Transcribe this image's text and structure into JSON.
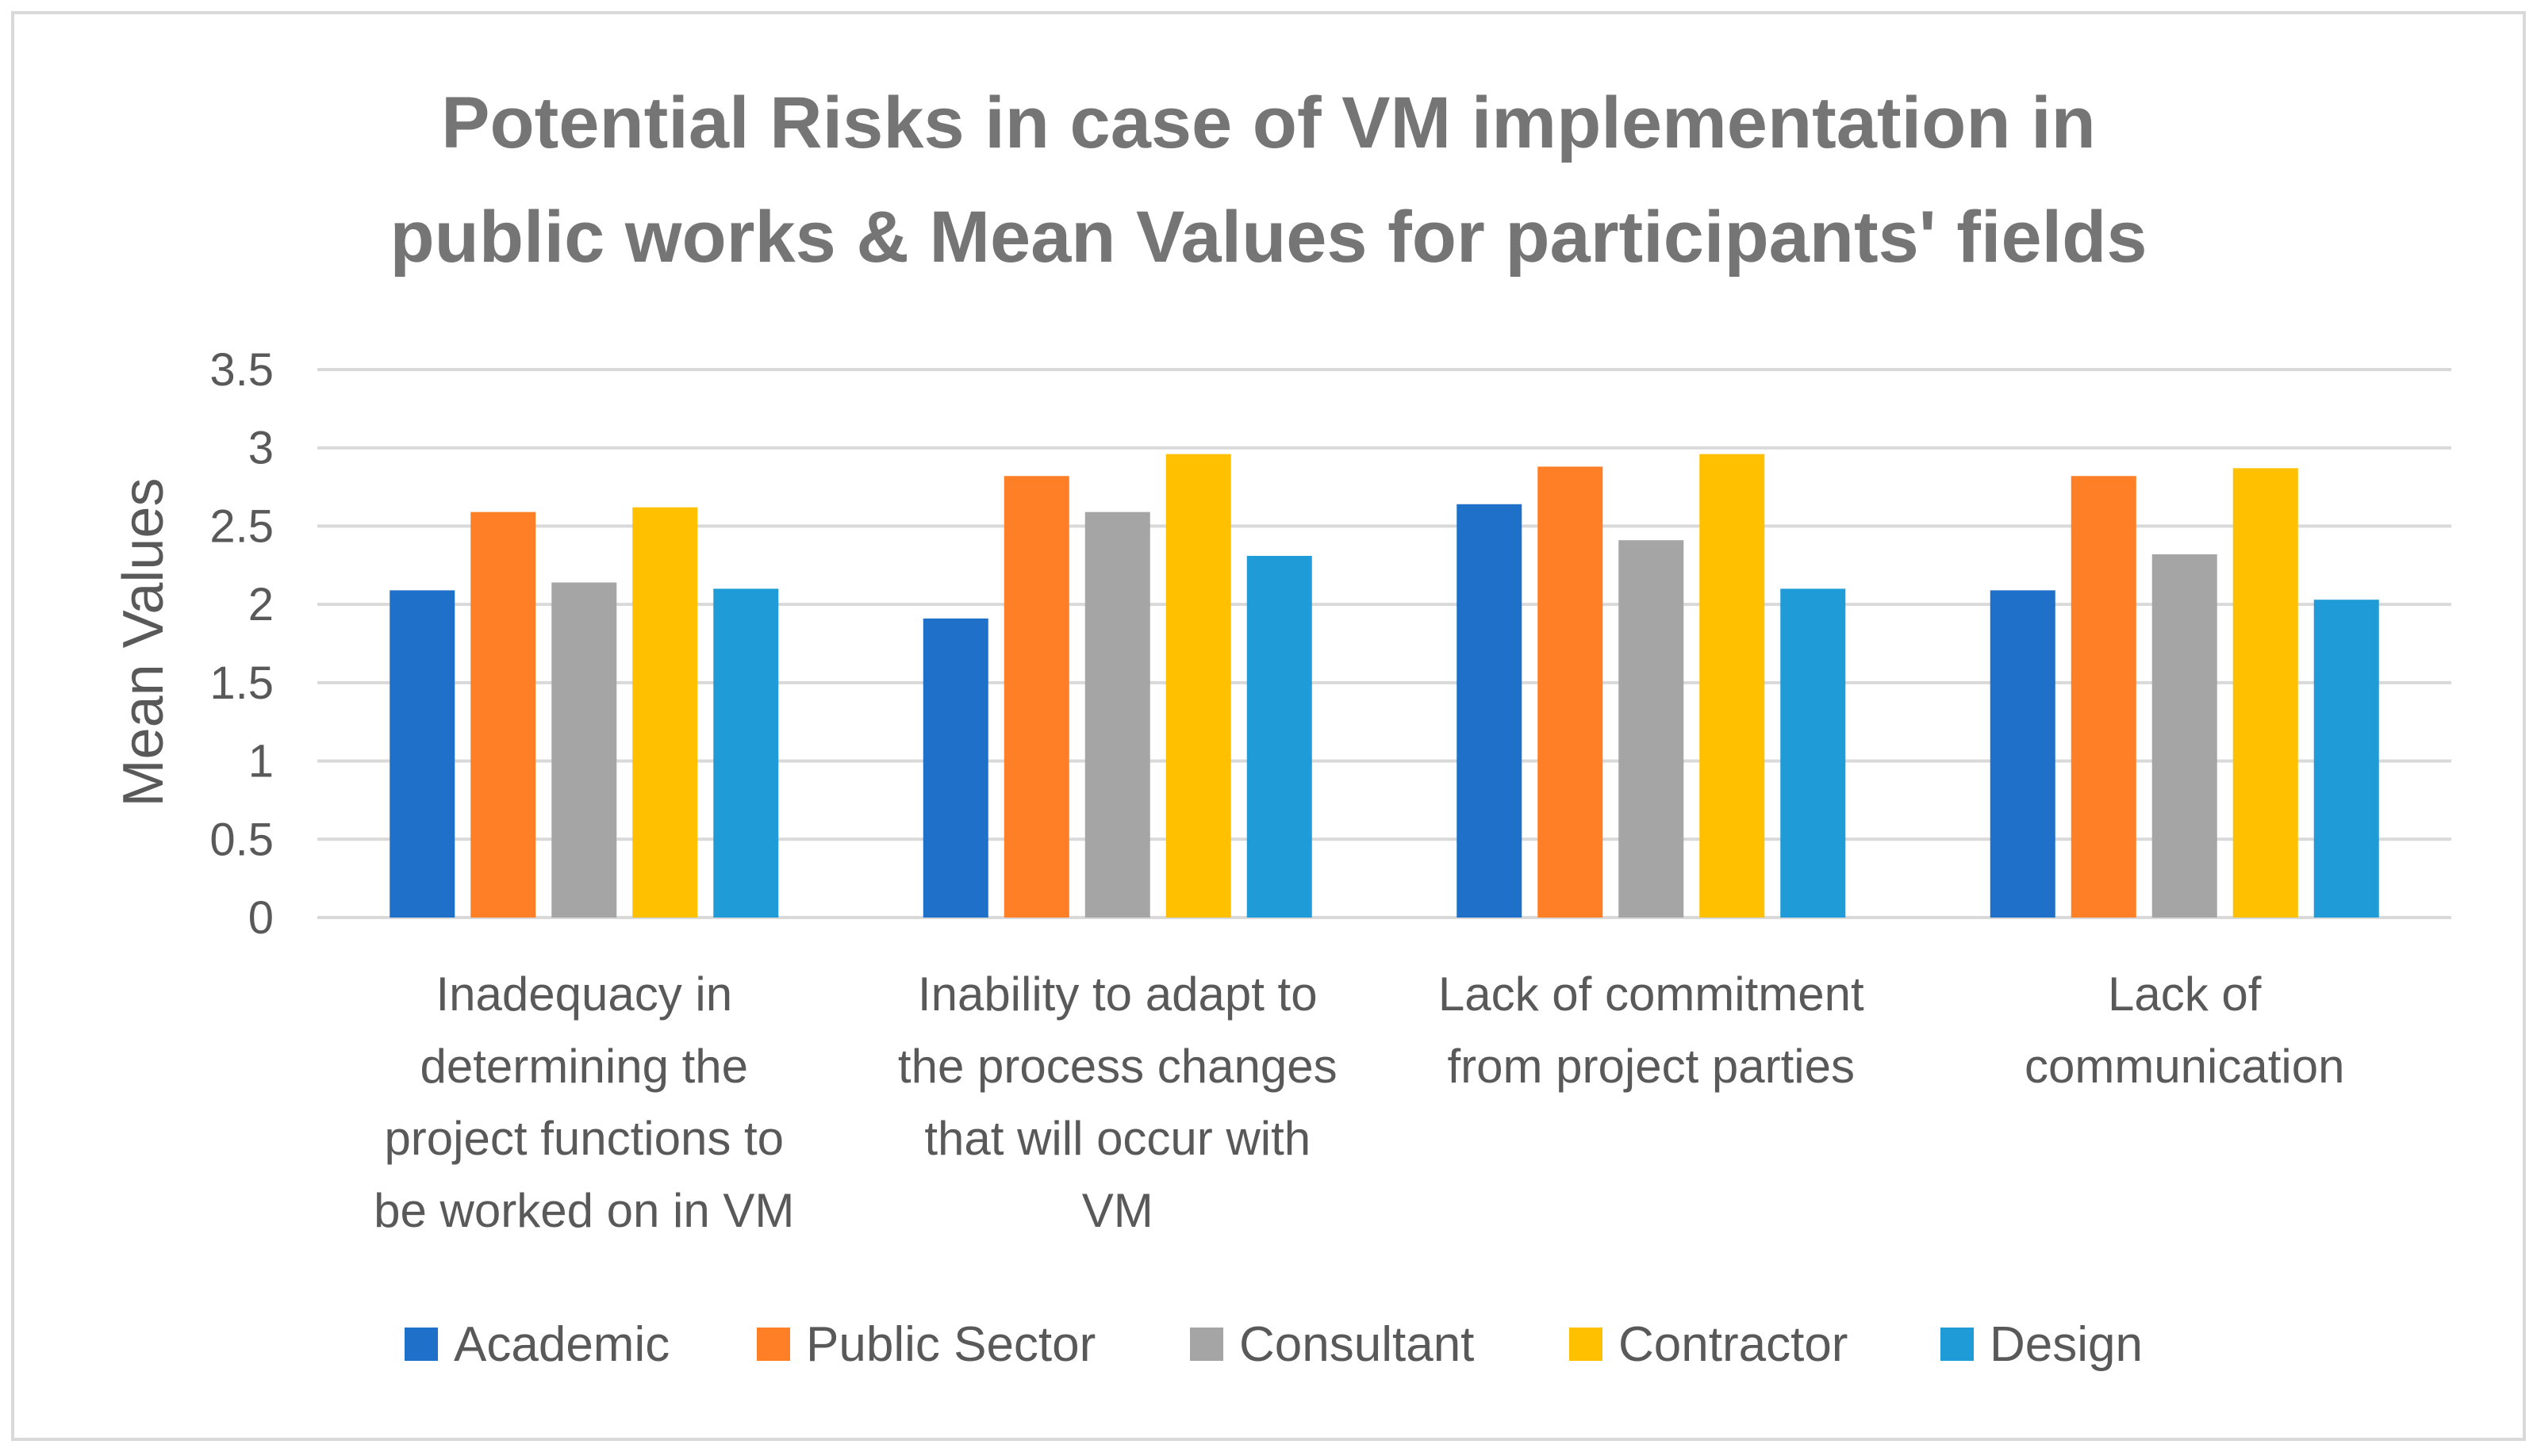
{
  "chart_data": {
    "type": "bar",
    "title": [
      "Potential Risks in case of VM implementation in",
      "public works & Mean Values for participants' fields"
    ],
    "xlabel": "",
    "ylabel": "Mean Values",
    "ylim": [
      0,
      3.5
    ],
    "yticks": [
      "0",
      "0.5",
      "1",
      "1.5",
      "2",
      "2.5",
      "3",
      "3.5"
    ],
    "ytick_values": [
      0,
      0.5,
      1,
      1.5,
      2,
      2.5,
      3,
      3.5
    ],
    "grid": true,
    "legend_position": "bottom",
    "categories": [
      [
        "Inadequacy in",
        "determining the",
        "project functions to",
        "be worked on in VM"
      ],
      [
        "Inability to adapt to",
        "the process changes",
        "that will occur with",
        "VM"
      ],
      [
        "Lack of commitment",
        "from project parties"
      ],
      [
        "Lack of",
        "communication"
      ]
    ],
    "series": [
      {
        "name": "Academic",
        "color": "#1F70C8",
        "values": [
          2.09,
          1.91,
          2.64,
          2.09
        ]
      },
      {
        "name": "Public Sector",
        "color": "#FF7F27",
        "values": [
          2.59,
          2.82,
          2.88,
          2.82
        ]
      },
      {
        "name": "Consultant",
        "color": "#A5A5A5",
        "values": [
          2.14,
          2.59,
          2.41,
          2.32
        ]
      },
      {
        "name": "Contractor",
        "color": "#FFC000",
        "values": [
          2.62,
          2.96,
          2.96,
          2.87
        ]
      },
      {
        "name": "Design",
        "color": "#1F9BD7",
        "values": [
          2.1,
          2.31,
          2.1,
          2.03
        ]
      }
    ]
  }
}
